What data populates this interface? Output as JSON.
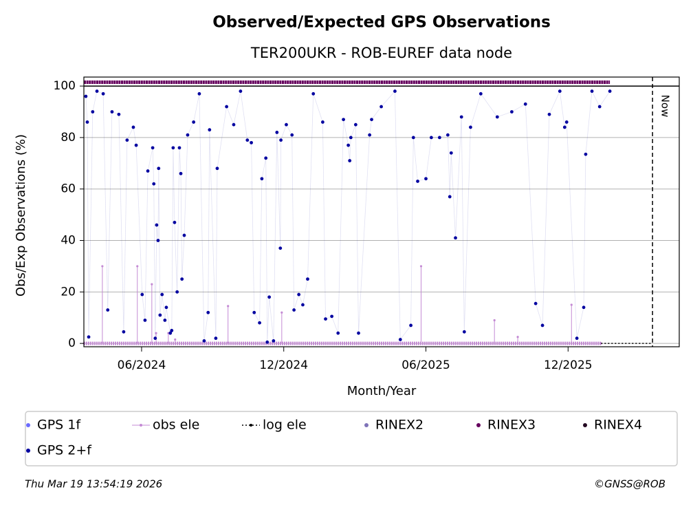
{
  "chart_data": {
    "type": "scatter",
    "title": "Observed/Expected GPS Observations",
    "subtitle": "TER200UKR - ROB-EUREF data node",
    "x_label": "Month/Year",
    "y_label": "Obs/Exp Observations (%)",
    "xlim": [
      2024.214,
      2026.308
    ],
    "ylim": [
      -1.3,
      103.5
    ],
    "xticks": [
      {
        "value": 2024.417,
        "label": "06/2024"
      },
      {
        "value": 2024.917,
        "label": "12/2024"
      },
      {
        "value": 2025.417,
        "label": "06/2025"
      },
      {
        "value": 2025.917,
        "label": "12/2025"
      }
    ],
    "yticks": [
      0,
      20,
      40,
      60,
      80,
      100
    ],
    "grid": true,
    "hline": 100,
    "annotations": [
      {
        "text": "Now",
        "x": 2026.214
      }
    ],
    "footer_left": "Thu Mar 19 13:54:19 2026",
    "footer_right": "©GNSS@ROB",
    "series": [
      {
        "name": "GPS 1f",
        "color": "#6b6bff",
        "kind": "scatter",
        "x": [],
        "values": []
      },
      {
        "name": "obs ele",
        "color": "#c48ad4",
        "kind": "stem",
        "x": [
          2024.214,
          2024.279,
          2024.402,
          2024.453,
          2024.468,
          2024.511,
          2024.535,
          2024.721,
          2024.91,
          2025.4,
          2025.658,
          2025.74,
          2025.929,
          2026.033
        ],
        "values": [
          0,
          30,
          30,
          23,
          4,
          4,
          1.5,
          14.5,
          12,
          30,
          9,
          2.5,
          15,
          0
        ]
      },
      {
        "name": "log ele",
        "color": "#000000",
        "kind": "dotted",
        "x": [
          2026.033,
          2026.214
        ],
        "values": [
          0,
          0
        ]
      },
      {
        "name": "RINEX2",
        "color": "#7f73b8",
        "kind": "scatter",
        "x": [],
        "values": []
      },
      {
        "name": "RINEX3",
        "color": "#66005e",
        "kind": "band",
        "x": [
          2024.214,
          2026.033,
          2026.064
        ],
        "values": [
          101.5,
          101.5,
          101.5
        ]
      },
      {
        "name": "RINEX4",
        "color": "#230821",
        "kind": "scatter",
        "x": [],
        "values": []
      },
      {
        "name": "GPS 2+f",
        "color": "#0000a0",
        "kind": "scatter",
        "x": [
          2024.221,
          2024.226,
          2024.231,
          2024.245,
          2024.26,
          2024.282,
          2024.298,
          2024.313,
          2024.337,
          2024.354,
          2024.366,
          2024.388,
          2024.398,
          2024.419,
          2024.429,
          2024.439,
          2024.456,
          2024.46,
          2024.465,
          2024.47,
          2024.475,
          2024.477,
          2024.482,
          2024.489,
          2024.499,
          2024.504,
          2024.518,
          2024.523,
          2024.528,
          2024.533,
          2024.542,
          2024.55,
          2024.555,
          2024.559,
          2024.567,
          2024.579,
          2024.6,
          2024.62,
          2024.637,
          2024.651,
          2024.656,
          2024.678,
          2024.683,
          2024.716,
          2024.741,
          2024.765,
          2024.789,
          2024.803,
          2024.813,
          2024.832,
          2024.84,
          2024.854,
          2024.859,
          2024.866,
          2024.881,
          2024.893,
          2024.905,
          2024.907,
          2024.926,
          2024.946,
          2024.953,
          2024.97,
          2024.984,
          2025.001,
          2025.021,
          2025.054,
          2025.064,
          2025.086,
          2025.108,
          2025.127,
          2025.144,
          2025.149,
          2025.153,
          2025.17,
          2025.18,
          2025.219,
          2025.226,
          2025.26,
          2025.308,
          2025.327,
          2025.364,
          2025.373,
          2025.388,
          2025.417,
          2025.436,
          2025.465,
          2025.494,
          2025.501,
          2025.506,
          2025.521,
          2025.542,
          2025.552,
          2025.574,
          2025.61,
          2025.668,
          2025.719,
          2025.767,
          2025.803,
          2025.827,
          2025.851,
          2025.888,
          2025.905,
          2025.912,
          2025.948,
          2025.972,
          2025.979,
          2026.001,
          2026.028,
          2026.064
        ],
        "values": [
          96,
          86,
          2.5,
          90,
          98,
          97,
          13,
          90,
          89,
          4.5,
          79,
          84,
          77,
          19,
          9,
          67,
          76,
          62,
          2,
          46,
          40,
          68,
          11,
          19,
          9,
          14,
          4,
          5,
          76,
          47,
          20,
          76,
          66,
          25,
          42,
          81,
          86,
          97,
          1,
          12,
          83,
          2,
          68,
          92,
          85,
          98,
          79,
          78,
          12,
          8,
          64,
          72,
          0.5,
          18,
          1,
          82,
          37,
          79,
          85,
          81,
          13,
          19,
          15,
          25,
          97,
          86,
          9.5,
          10.5,
          4,
          87,
          77,
          71,
          80,
          85,
          4,
          81,
          87,
          92,
          98,
          1.5,
          7,
          80,
          63,
          64,
          80,
          80,
          81,
          57,
          74,
          41,
          88,
          4.5,
          84,
          97,
          88,
          90,
          93,
          15.5,
          7,
          89,
          98,
          84,
          86,
          2,
          14,
          73.5,
          98,
          92,
          98
        ]
      }
    ]
  }
}
